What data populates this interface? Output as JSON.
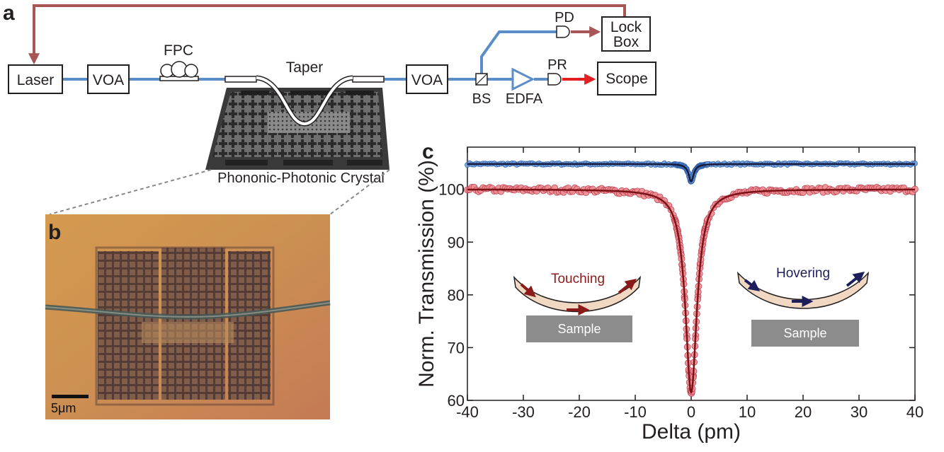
{
  "panel_labels": {
    "a": "a",
    "b": "b",
    "c": "c"
  },
  "setup": {
    "laser": "Laser",
    "voa1": "VOA",
    "fpc": "FPC",
    "taper": "Taper",
    "voa2": "VOA",
    "bs": "BS",
    "edfa": "EDFA",
    "pd": "PD",
    "pr": "PR",
    "lockbox_line1": "Lock",
    "lockbox_line2": "Box",
    "scope": "Scope",
    "crystal": "Phononic-Photonic Crystal"
  },
  "micrograph": {
    "scale_bar": "5μm"
  },
  "colors": {
    "fiber": "#5b8ec7",
    "feedback": "#a85555",
    "signal_red": "#e32020",
    "touching_fit": "#7a1218",
    "touching_points": "#f08a92",
    "hovering_fit": "#1a1a3a",
    "hovering_points": "#6fa0df",
    "sample_box": "#8c8c8c"
  },
  "chart_data": {
    "type": "scatter",
    "xlabel": "Delta (pm)",
    "ylabel": "Norm. Transmission (%)",
    "xlim": [
      -40,
      40
    ],
    "ylim": [
      60,
      108
    ],
    "xticks": [
      "-40",
      "-30",
      "-20",
      "-10",
      "0",
      "10",
      "20",
      "30",
      "40"
    ],
    "yticks": [
      "60",
      "70",
      "80",
      "90",
      "100"
    ],
    "series": [
      {
        "name": "",
        "kind": "hovering",
        "baseline": 104.8,
        "dip_depth": 3.3,
        "half_width": 0.55,
        "x_range": [
          -40,
          40
        ]
      },
      {
        "name": "",
        "kind": "touching",
        "baseline": 100.0,
        "dip_depth": 38.5,
        "half_width": 1.25,
        "x_range": [
          -40,
          40
        ]
      }
    ],
    "insets": [
      {
        "label": "Touching",
        "sample": "Sample"
      },
      {
        "label": "Hovering",
        "sample": "Sample"
      }
    ]
  }
}
